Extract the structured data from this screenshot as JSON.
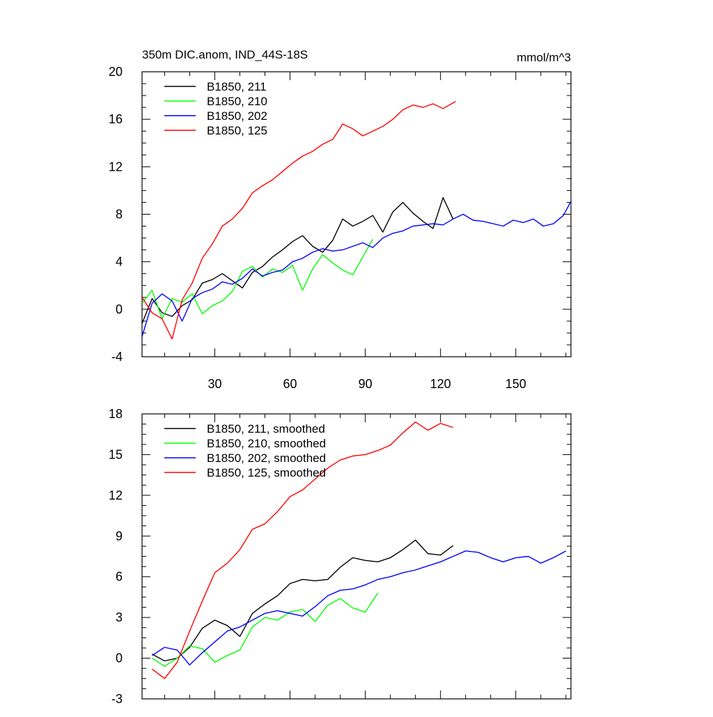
{
  "figure": {
    "title_left": "350m DIC.anom, IND_44S-18S",
    "title_right": "mmol/m^3"
  },
  "chart_data": [
    {
      "type": "line",
      "panel": "top",
      "xlim": [
        1,
        172
      ],
      "ylim": [
        -4,
        20
      ],
      "xticks": [
        30,
        60,
        90,
        120,
        150
      ],
      "xtick_labels": [
        "30",
        "60",
        "90",
        "120",
        "150"
      ],
      "yticks": [
        -4,
        0,
        4,
        8,
        12,
        16,
        20
      ],
      "ytick_labels": [
        "-4",
        "0",
        "4",
        "8",
        "12",
        "16",
        "20"
      ],
      "legend": "top-left",
      "grid": false,
      "series": [
        {
          "name": "B1850, 211",
          "color": "#000000",
          "x": [
            1,
            5,
            9,
            13,
            17,
            21,
            25,
            29,
            33,
            37,
            41,
            45,
            49,
            53,
            57,
            61,
            65,
            69,
            73,
            77,
            81,
            85,
            89,
            93,
            97,
            101,
            105,
            109,
            113,
            117,
            121,
            125
          ],
          "y": [
            -1.2,
            0.9,
            -0.3,
            -0.6,
            0.3,
            0.8,
            2.2,
            2.5,
            3.0,
            2.4,
            1.8,
            3.1,
            3.6,
            4.4,
            5.0,
            5.7,
            6.2,
            5.3,
            4.8,
            5.8,
            7.6,
            7.0,
            7.4,
            7.9,
            6.5,
            8.2,
            9.0,
            8.1,
            7.4,
            6.8,
            9.4,
            7.6
          ]
        },
        {
          "name": "B1850, 210",
          "color": "#00ff00",
          "x": [
            1,
            5,
            9,
            13,
            17,
            21,
            25,
            29,
            33,
            37,
            41,
            45,
            49,
            53,
            57,
            61,
            65,
            69,
            73,
            77,
            81,
            85,
            89,
            93
          ],
          "y": [
            0.5,
            1.6,
            -0.8,
            0.9,
            0.6,
            1.3,
            -0.4,
            0.3,
            0.7,
            1.5,
            3.2,
            3.6,
            2.7,
            3.4,
            3.1,
            3.7,
            1.6,
            3.4,
            4.6,
            3.9,
            3.3,
            2.9,
            4.4,
            5.9
          ]
        },
        {
          "name": "B1850, 202",
          "color": "#0000ff",
          "x": [
            1,
            5,
            9,
            13,
            17,
            21,
            25,
            29,
            33,
            37,
            41,
            45,
            49,
            53,
            57,
            61,
            65,
            69,
            73,
            77,
            81,
            85,
            89,
            93,
            97,
            101,
            105,
            109,
            113,
            117,
            121,
            125,
            129,
            133,
            137,
            141,
            145,
            149,
            153,
            157,
            161,
            165,
            169,
            172
          ],
          "y": [
            -2.3,
            0.5,
            1.3,
            0.7,
            -1.0,
            0.9,
            1.4,
            1.7,
            2.3,
            2.1,
            2.6,
            3.4,
            2.8,
            3.1,
            3.3,
            4.0,
            4.3,
            4.8,
            5.1,
            4.9,
            5.0,
            5.3,
            5.6,
            5.2,
            6.0,
            6.4,
            6.6,
            7.0,
            7.1,
            7.2,
            7.1,
            7.6,
            8.0,
            7.5,
            7.4,
            7.2,
            7.0,
            7.5,
            7.3,
            7.6,
            7.0,
            7.2,
            7.9,
            9.1
          ]
        },
        {
          "name": "B1850, 125",
          "color": "#ff0000",
          "x": [
            1,
            5,
            9,
            13,
            17,
            21,
            25,
            29,
            33,
            37,
            41,
            45,
            49,
            53,
            57,
            61,
            65,
            69,
            73,
            77,
            81,
            85,
            89,
            93,
            97,
            101,
            105,
            109,
            113,
            117,
            121,
            126
          ],
          "y": [
            1.0,
            -0.3,
            -0.8,
            -2.5,
            0.8,
            2.2,
            4.3,
            5.5,
            7.0,
            7.6,
            8.5,
            9.8,
            10.4,
            10.9,
            11.6,
            12.3,
            12.9,
            13.3,
            13.9,
            14.3,
            15.6,
            15.2,
            14.6,
            15.0,
            15.4,
            16.0,
            16.8,
            17.2,
            17.0,
            17.3,
            16.9,
            17.5
          ]
        }
      ]
    },
    {
      "type": "line",
      "panel": "bottom",
      "xlim": [
        1,
        172
      ],
      "ylim": [
        -3,
        18
      ],
      "yticks": [
        -3,
        0,
        3,
        6,
        9,
        12,
        15,
        18
      ],
      "ytick_labels": [
        "-3",
        "0",
        "3",
        "6",
        "9",
        "12",
        "15",
        "18"
      ],
      "legend": "top-left",
      "grid": false,
      "series": [
        {
          "name": "B1850, 211, smoothed",
          "color": "#000000",
          "x": [
            5,
            10,
            15,
            20,
            25,
            30,
            35,
            40,
            45,
            50,
            55,
            60,
            65,
            70,
            75,
            80,
            85,
            90,
            95,
            100,
            105,
            110,
            115,
            120,
            125
          ],
          "y": [
            0.3,
            -0.2,
            0.0,
            0.8,
            2.2,
            2.8,
            2.4,
            1.6,
            3.3,
            4.0,
            4.6,
            5.5,
            5.8,
            5.7,
            5.8,
            6.7,
            7.4,
            7.2,
            7.1,
            7.4,
            8.0,
            8.7,
            7.7,
            7.6,
            8.3
          ]
        },
        {
          "name": "B1850, 210, smoothed",
          "color": "#00ff00",
          "x": [
            5,
            10,
            15,
            20,
            25,
            30,
            35,
            40,
            45,
            50,
            55,
            60,
            65,
            70,
            75,
            80,
            85,
            90,
            95
          ],
          "y": [
            0.0,
            -0.6,
            0.0,
            0.9,
            0.7,
            -0.3,
            0.2,
            0.6,
            2.3,
            3.0,
            2.8,
            3.4,
            3.6,
            2.7,
            3.9,
            4.4,
            3.7,
            3.4,
            4.8
          ]
        },
        {
          "name": "B1850, 202, smoothed",
          "color": "#0000ff",
          "x": [
            5,
            10,
            15,
            20,
            25,
            30,
            35,
            40,
            45,
            50,
            55,
            60,
            65,
            70,
            75,
            80,
            85,
            90,
            95,
            100,
            105,
            110,
            115,
            120,
            125,
            130,
            135,
            140,
            145,
            150,
            155,
            160,
            165,
            170
          ],
          "y": [
            0.2,
            0.8,
            0.6,
            -0.5,
            0.4,
            1.2,
            2.0,
            2.3,
            2.8,
            3.3,
            3.5,
            3.3,
            3.1,
            3.8,
            4.6,
            5.0,
            5.1,
            5.4,
            5.8,
            6.0,
            6.3,
            6.5,
            6.8,
            7.1,
            7.5,
            7.9,
            7.8,
            7.4,
            7.1,
            7.4,
            7.5,
            7.0,
            7.4,
            7.9
          ]
        },
        {
          "name": "B1850, 125, smoothed",
          "color": "#ff0000",
          "x": [
            5,
            10,
            15,
            20,
            25,
            30,
            35,
            40,
            45,
            50,
            55,
            60,
            65,
            70,
            75,
            80,
            85,
            90,
            95,
            100,
            105,
            110,
            115,
            120,
            125
          ],
          "y": [
            -0.8,
            -1.5,
            -0.3,
            2.0,
            4.2,
            6.3,
            7.0,
            8.0,
            9.5,
            9.9,
            10.8,
            11.9,
            12.4,
            13.2,
            14.0,
            14.6,
            14.9,
            15.0,
            15.3,
            15.7,
            16.6,
            17.4,
            16.8,
            17.3,
            17.0
          ]
        }
      ]
    }
  ]
}
